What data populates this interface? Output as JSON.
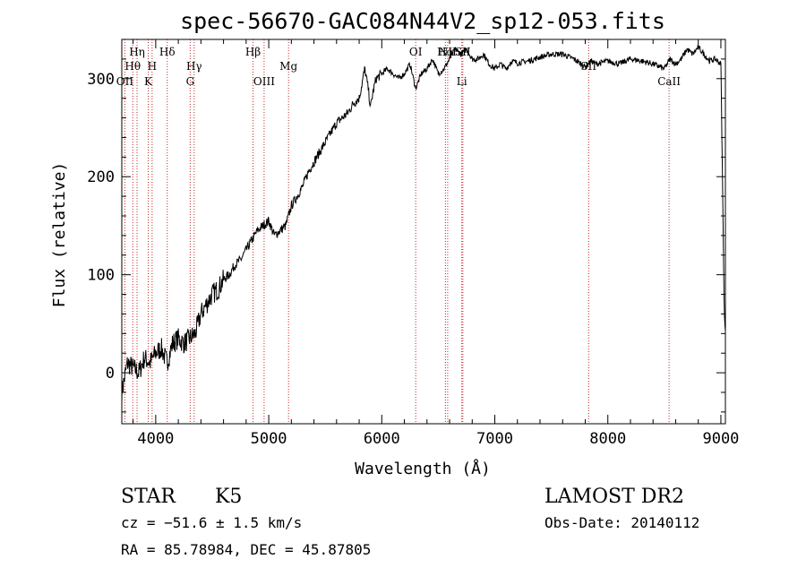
{
  "title": "spec-56670-GAC084N44V2_sp12-053.fits",
  "info": {
    "class": "STAR",
    "subclass": "K5",
    "survey": "LAMOST DR2",
    "cz": "cz = −51.6 ± 1.5 km/s",
    "obsdate": "Obs-Date: 20140112",
    "radec": "RA =  85.78984, DEC =  45.87805"
  },
  "chart_data": {
    "type": "line",
    "title": "spec-56670-GAC084N44V2_sp12-053.fits",
    "xlabel": "Wavelength (Å)",
    "ylabel": "Flux (relative)",
    "xlim": [
      3700,
      9040
    ],
    "ylim": [
      -52,
      340
    ],
    "x_ticks": [
      4000,
      5000,
      6000,
      7000,
      8000,
      9000
    ],
    "y_ticks": [
      0,
      100,
      200,
      300
    ],
    "line_color": "#000000",
    "marker_color": "#cc2222",
    "series": [
      {
        "x": [
          3700,
          3750,
          3800,
          3850,
          3900,
          3950,
          4000,
          4050,
          4100,
          4150,
          4200,
          4250,
          4300,
          4350,
          4400,
          4450,
          4500,
          4550,
          4600,
          4650,
          4700,
          4750,
          4800,
          4850,
          4900,
          4950,
          5000,
          5050,
          5100,
          5150,
          5200,
          5250,
          5300,
          5350,
          5400,
          5450,
          5500,
          5550,
          5600,
          5650,
          5700,
          5750,
          5800,
          5850,
          5880,
          5900,
          5920,
          5950,
          6000,
          6050,
          6100,
          6150,
          6200,
          6250,
          6300,
          6350,
          6400,
          6450,
          6500,
          6550,
          6600,
          6650,
          6700,
          6750,
          6800,
          6850,
          6900,
          6950,
          7000,
          7050,
          7100,
          7150,
          7200,
          7300,
          7400,
          7500,
          7600,
          7700,
          7800,
          7850,
          7900,
          8000,
          8100,
          8200,
          8300,
          8400,
          8500,
          8550,
          8600,
          8650,
          8700,
          8750,
          8800,
          8850,
          8900,
          8950,
          9000,
          9030,
          9040
        ],
        "values": [
          -20,
          10,
          5,
          0,
          15,
          10,
          20,
          25,
          10,
          30,
          35,
          30,
          35,
          40,
          60,
          70,
          80,
          85,
          95,
          100,
          110,
          115,
          125,
          135,
          145,
          150,
          155,
          140,
          145,
          150,
          170,
          180,
          190,
          205,
          215,
          225,
          235,
          245,
          255,
          260,
          265,
          275,
          280,
          310,
          290,
          270,
          285,
          300,
          305,
          310,
          305,
          300,
          305,
          315,
          290,
          305,
          310,
          320,
          305,
          310,
          320,
          330,
          325,
          330,
          320,
          320,
          325,
          315,
          310,
          315,
          310,
          318,
          316,
          318,
          322,
          325,
          325,
          320,
          312,
          318,
          315,
          318,
          315,
          320,
          318,
          315,
          310,
          320,
          315,
          320,
          330,
          325,
          332,
          325,
          318,
          320,
          315,
          60,
          40
        ]
      }
    ],
    "lines": [
      {
        "label": "Hη",
        "wave": 3835,
        "row": 1
      },
      {
        "label": "Hθ",
        "wave": 3797,
        "row": 2
      },
      {
        "label": "OII",
        "wave": 3727,
        "row": 3
      },
      {
        "label": "H",
        "wave": 3968,
        "row": 2
      },
      {
        "label": "K",
        "wave": 3934,
        "row": 3
      },
      {
        "label": "Hδ",
        "wave": 4102,
        "row": 1
      },
      {
        "label": "Hγ",
        "wave": 4340,
        "row": 2
      },
      {
        "label": "G",
        "wave": 4305,
        "row": 3
      },
      {
        "label": "Hβ",
        "wave": 4861,
        "row": 1
      },
      {
        "label": "OIII",
        "wave": 4959,
        "row": 3
      },
      {
        "label": "Mg",
        "wave": 5175,
        "row": 2
      },
      {
        "label": "OI",
        "wave": 6300,
        "row": 1
      },
      {
        "label": "Hα",
        "wave": 6563,
        "row": 1
      },
      {
        "label": "NII",
        "wave": 6583,
        "row": 1
      },
      {
        "label": "SII",
        "wave": 6717,
        "row": 1
      },
      {
        "label": "Li",
        "wave": 6708,
        "row": 3
      },
      {
        "label": "SII",
        "wave": 7830,
        "row": 2
      },
      {
        "label": "CaII",
        "wave": 8542,
        "row": 3
      }
    ]
  }
}
